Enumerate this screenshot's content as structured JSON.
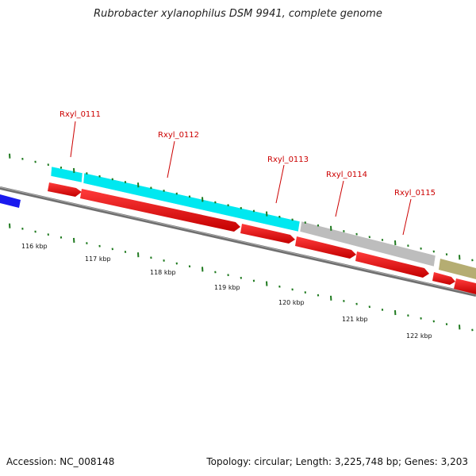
{
  "title": "Rubrobacter xylanophilus DSM 9941, complete genome",
  "footer": {
    "accession": "Accession: NC_008148",
    "summary": "Topology: circular; Length: 3,225,748 bp; Genes: 3,203"
  },
  "colors": {
    "gene_label": "#cc0000",
    "cds": "#ee0000",
    "cyan_feature": "#00e8f0",
    "grey_feature": "#bdbdbd",
    "olive_feature": "#b5ad72",
    "blue_feature": "#1a1aee",
    "backbone": "#6f6f6f",
    "ticks": "#1f7a1f"
  },
  "gene_labels": [
    "Rxyl_0111",
    "Rxyl_0112",
    "Rxyl_0113",
    "Rxyl_0114",
    "Rxyl_0115"
  ],
  "kbp_labels": [
    "116 kbp",
    "117 kbp",
    "118 kbp",
    "119 kbp",
    "120 kbp",
    "121 kbp",
    "122 kbp"
  ]
}
